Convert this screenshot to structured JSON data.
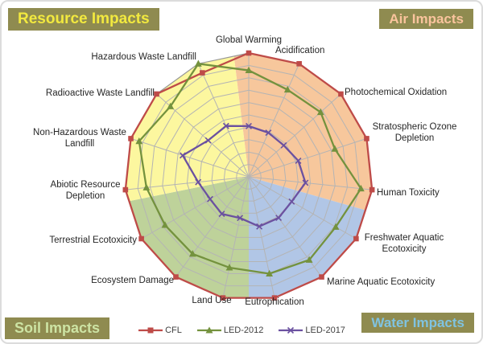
{
  "corner_labels": {
    "resource": {
      "text": "Resource Impacts",
      "text_color": "#f2e93f",
      "bg": "#8f8b50"
    },
    "air": {
      "text": "Air Impacts",
      "text_color": "#fac49d",
      "bg": "#8f8b50"
    },
    "soil": {
      "text": "Soil Impacts",
      "text_color": "#cde4a4",
      "bg": "#8f8b50"
    },
    "water": {
      "text": "Water Impacts",
      "text_color": "#7fc3e1",
      "bg": "#8f8b50"
    }
  },
  "chart_data": {
    "type": "radar",
    "rings": 10,
    "value_range": [
      0,
      1
    ],
    "grid_color": "#b4b4b4",
    "grid_outer_color": "#979797",
    "legend_position": "bottom-center",
    "axes": [
      {
        "label": "Global Warming",
        "lines": [
          "Global Warming"
        ],
        "group": "air"
      },
      {
        "label": "Acidification",
        "lines": [
          "Acidification"
        ],
        "group": "air"
      },
      {
        "label": "Photochemical Oxidation",
        "lines": [
          "Photochemical Oxidation"
        ],
        "group": "air"
      },
      {
        "label": "Stratospheric Ozone Depletion",
        "lines": [
          "Stratospheric Ozone",
          "Depletion"
        ],
        "group": "air"
      },
      {
        "label": "Human Toxicity",
        "lines": [
          "Human Toxicity"
        ],
        "group": "air"
      },
      {
        "label": "Freshwater Aquatic Ecotoxicity",
        "lines": [
          "Freshwater Aquatic",
          "Ecotoxicity"
        ],
        "group": "water"
      },
      {
        "label": "Marine Aquatic Ecotoxicity",
        "lines": [
          "Marine Aquatic Ecotoxicity"
        ],
        "group": "water"
      },
      {
        "label": "Eutrophication",
        "lines": [
          "Eutrophication"
        ],
        "group": "water"
      },
      {
        "label": "Land Use",
        "lines": [
          "Land Use"
        ],
        "group": "soil"
      },
      {
        "label": "Ecosystem Damage",
        "lines": [
          "Ecosystem Damage"
        ],
        "group": "soil"
      },
      {
        "label": "Terrestrial Ecotoxicity",
        "lines": [
          "Terrestrial Ecotoxicity"
        ],
        "group": "soil"
      },
      {
        "label": "Abiotic Resource Depletion",
        "lines": [
          "Abiotic Resource",
          "Depletion"
        ],
        "group": "resource"
      },
      {
        "label": "Non-Hazardous Waste Landfill",
        "lines": [
          "Non-Hazardous Waste",
          "Landfill"
        ],
        "group": "resource"
      },
      {
        "label": "Radioactive Waste Landfill",
        "lines": [
          "Radioactive Waste Landfill"
        ],
        "group": "resource"
      },
      {
        "label": "Hazardous Waste Landfill",
        "lines": [
          "Hazardous Waste Landfill"
        ],
        "group": "resource"
      }
    ],
    "sectors": [
      {
        "group": "air",
        "color": "#f7c79c",
        "from": 97,
        "to": -16
      },
      {
        "group": "water",
        "color": "#b1c6e6",
        "from": -16,
        "to": -90
      },
      {
        "group": "soil",
        "color": "#bed29a",
        "from": -90,
        "to": -168.5
      },
      {
        "group": "resource",
        "color": "#fcf79f",
        "from": 191.5,
        "to": 97
      }
    ],
    "series": [
      {
        "name": "CFL",
        "color": "#be4b48",
        "marker": "square",
        "values": [
          1.0,
          1.0,
          1.0,
          1.0,
          1.0,
          1.0,
          1.0,
          1.0,
          1.0,
          1.0,
          1.0,
          1.0,
          1.0,
          1.0,
          0.92
        ]
      },
      {
        "name": "LED-2012",
        "color": "#74923e",
        "marker": "triangle",
        "values": [
          0.86,
          0.77,
          0.78,
          0.73,
          0.91,
          0.81,
          0.83,
          0.8,
          0.75,
          0.77,
          0.78,
          0.83,
          0.93,
          0.85,
          1.0
        ]
      },
      {
        "name": "LED-2017",
        "color": "#6b51a0",
        "marker": "x",
        "values": [
          0.41,
          0.39,
          0.38,
          0.42,
          0.46,
          0.4,
          0.41,
          0.41,
          0.34,
          0.37,
          0.36,
          0.41,
          0.56,
          0.44,
          0.45
        ]
      }
    ]
  }
}
